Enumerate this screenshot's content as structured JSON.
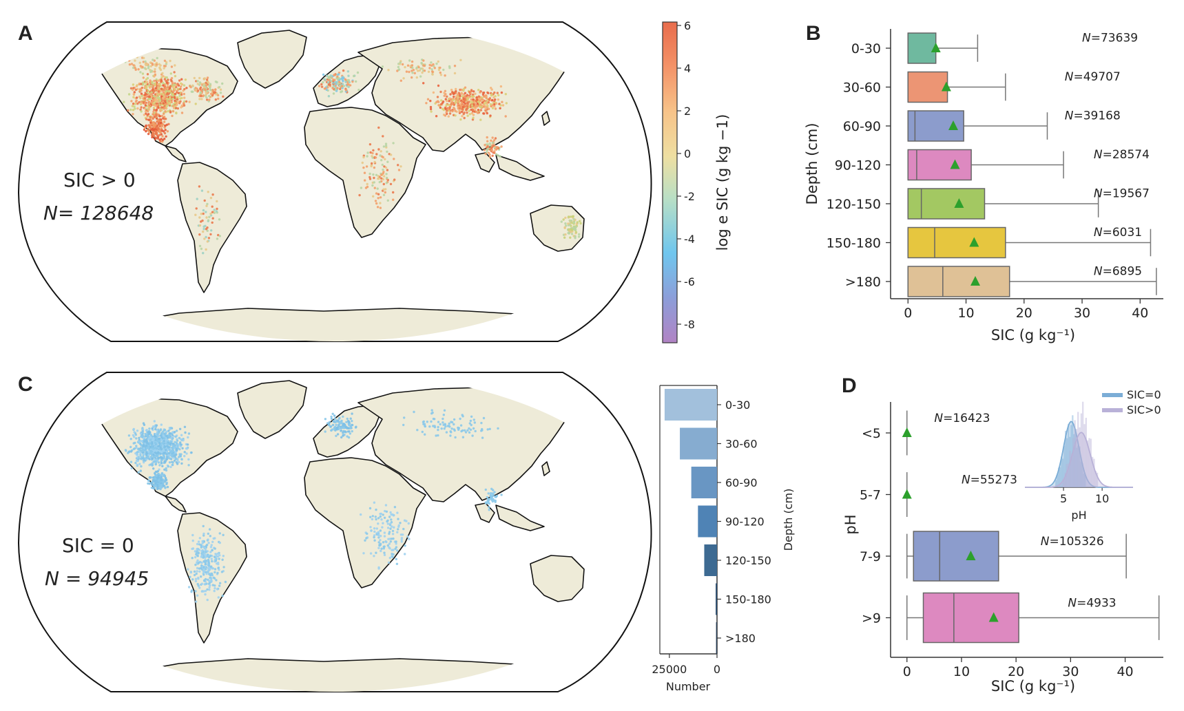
{
  "panels": {
    "A": {
      "letter": "A",
      "line1": "SIC > 0",
      "n_text": "N= 128648",
      "colorbar_label": "log e SIC (g kg −1)",
      "colorbar_ticks": [
        "6",
        "4",
        "2",
        "0",
        "-2",
        "-4",
        "-6",
        "-8"
      ]
    },
    "B": {
      "letter": "B"
    },
    "C": {
      "letter": "C",
      "line1": "SIC = 0",
      "n_text": "N = 94945"
    },
    "D": {
      "letter": "D"
    }
  },
  "chart_data": [
    {
      "id": "B",
      "type": "box",
      "orientation": "horizontal",
      "ylabel": "Depth (cm)",
      "xlabel": "SIC (g kg⁻¹)",
      "xlim": [
        -3,
        44
      ],
      "xticks": [
        "0",
        "10",
        "20",
        "30",
        "40"
      ],
      "tick_values": [
        0,
        10,
        20,
        30,
        40
      ],
      "categories": [
        "0-30",
        "30-60",
        "60-90",
        "90-120",
        "120-150",
        "150-180",
        ">180"
      ],
      "n_labels": [
        "N=73639",
        "N=49707",
        "N=39168",
        "N=28574",
        "N=19567",
        "N=6031",
        "N=6895"
      ],
      "n_positions": [
        30,
        27,
        27,
        32,
        32,
        32,
        32
      ],
      "boxes": [
        {
          "min": 0,
          "q1": 0,
          "median": 0,
          "q3": 4.8,
          "max": 12,
          "mean": 4.8,
          "color": "#6fb99f"
        },
        {
          "min": 0,
          "q1": 0,
          "median": 0,
          "q3": 6.8,
          "max": 16.8,
          "mean": 6.6,
          "color": "#ec9574"
        },
        {
          "min": 0,
          "q1": 0,
          "median": 1.2,
          "q3": 9.6,
          "max": 24,
          "mean": 7.8,
          "color": "#8c9ccc"
        },
        {
          "min": 0,
          "q1": 0,
          "median": 1.5,
          "q3": 10.9,
          "max": 26.8,
          "mean": 8.1,
          "color": "#dd89c0"
        },
        {
          "min": 0,
          "q1": 0,
          "median": 2.3,
          "q3": 13.2,
          "max": 32.8,
          "mean": 8.8,
          "color": "#a3c862"
        },
        {
          "min": 0,
          "q1": 0,
          "median": 4.6,
          "q3": 16.8,
          "max": 41.8,
          "mean": 11.4,
          "color": "#e6c63f"
        },
        {
          "min": 0,
          "q1": 0,
          "median": 6.0,
          "q3": 17.5,
          "max": 42.8,
          "mean": 11.6,
          "color": "#dfc196"
        }
      ]
    },
    {
      "id": "C-bars",
      "type": "bar",
      "orientation": "horizontal",
      "xlabel": "Number",
      "ylabel": "Depth (cm)",
      "xticks": [
        "25000",
        "0"
      ],
      "tick_values": [
        25000,
        0
      ],
      "xlim": [
        0,
        30000
      ],
      "categories": [
        "0-30",
        "30-60",
        "60-90",
        "90-120",
        "120-150",
        "150-180",
        ">180"
      ],
      "values": [
        27500,
        19500,
        13500,
        10000,
        6700,
        700,
        500
      ],
      "colors": [
        "#a2c0dc",
        "#86acd0",
        "#6996c3",
        "#4f83b5",
        "#3d6a92",
        "#2e4f70",
        "#2a3f57"
      ]
    },
    {
      "id": "D",
      "type": "box",
      "orientation": "horizontal",
      "ylabel": "pH",
      "xlabel": "SIC (g kg⁻¹)",
      "xlim": [
        -3,
        47
      ],
      "xticks": [
        "0",
        "10",
        "20",
        "30",
        "40"
      ],
      "tick_values": [
        0,
        10,
        20,
        30,
        40
      ],
      "categories": [
        "<5",
        "5-7",
        "7-9",
        ">9"
      ],
      "n_labels": [
        "N=16423",
        "N=55273",
        "N=105326",
        "N=4933"
      ],
      "n_positions": [
        5,
        10,
        24.5,
        29.5
      ],
      "boxes": [
        {
          "min": 0,
          "q1": 0,
          "median": 0,
          "q3": 0,
          "max": 0,
          "mean": 0,
          "color": "#8c9ccc"
        },
        {
          "min": 0,
          "q1": 0,
          "median": 0,
          "q3": 0,
          "max": 0,
          "mean": 0,
          "color": "#8c9ccc"
        },
        {
          "min": 0,
          "q1": 1.2,
          "median": 6.0,
          "q3": 16.8,
          "max": 40.2,
          "mean": 11.7,
          "color": "#8c9ccc"
        },
        {
          "min": 0,
          "q1": 3.0,
          "median": 8.6,
          "q3": 20.5,
          "max": 46.2,
          "mean": 15.9,
          "color": "#dd89c0"
        }
      ]
    },
    {
      "id": "D-inset",
      "type": "density",
      "xlabel": "pH",
      "xticks": [
        "5",
        "10"
      ],
      "tick_values": [
        5,
        10
      ],
      "xlim": [
        0,
        14
      ],
      "legend": [
        "SIC=0",
        "SIC>0"
      ],
      "series": [
        {
          "name": "SIC=0",
          "color": "#7badd6",
          "peak": 6.0,
          "width": 1.0
        },
        {
          "name": "SIC>0",
          "color": "#b9b1d8",
          "peak": 7.3,
          "width": 1.15
        }
      ]
    }
  ]
}
